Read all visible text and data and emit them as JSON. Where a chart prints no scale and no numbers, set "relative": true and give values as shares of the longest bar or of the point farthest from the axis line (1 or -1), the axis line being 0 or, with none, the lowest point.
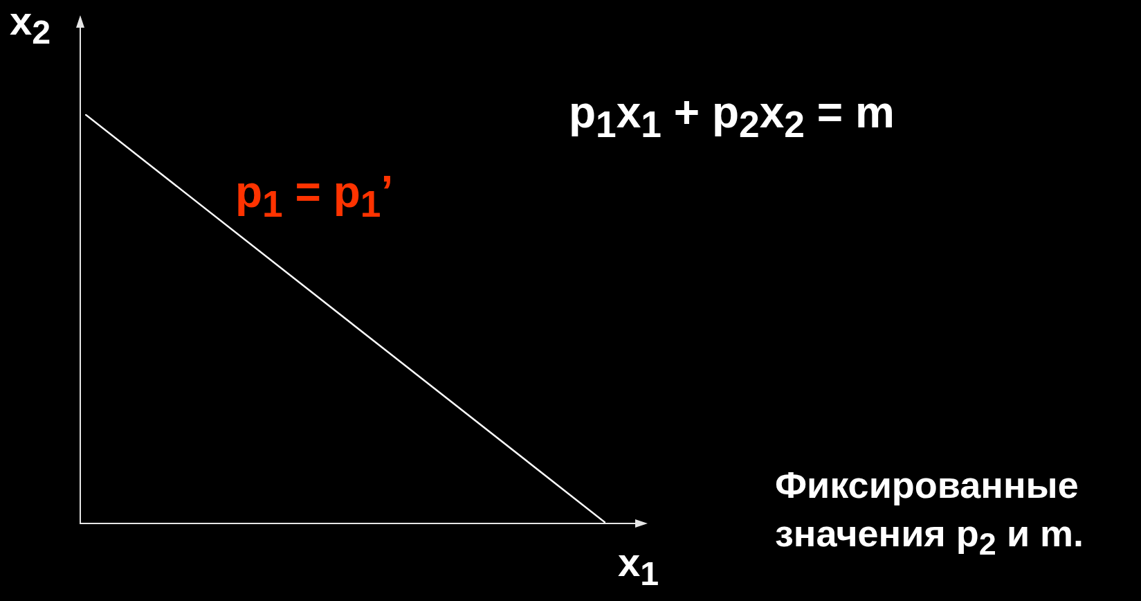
{
  "chart_data": {
    "type": "line",
    "relative": true,
    "xlabel": "x$_{1}$",
    "ylabel": "x$_{2}$",
    "categories": [
      null,
      null
    ],
    "series": [
      {
        "color": "#ffffff",
        "values": [
          1,
          0
        ]
      }
    ],
    "annotations": [
      "p$_{1}$x$_{1}$ + p$_{2}$x$_{2}$ = m",
      "p$_{1}$ = p$_{1}$’",
      "Фиксированные значения p$_{2}$ и m."
    ]
  }
}
